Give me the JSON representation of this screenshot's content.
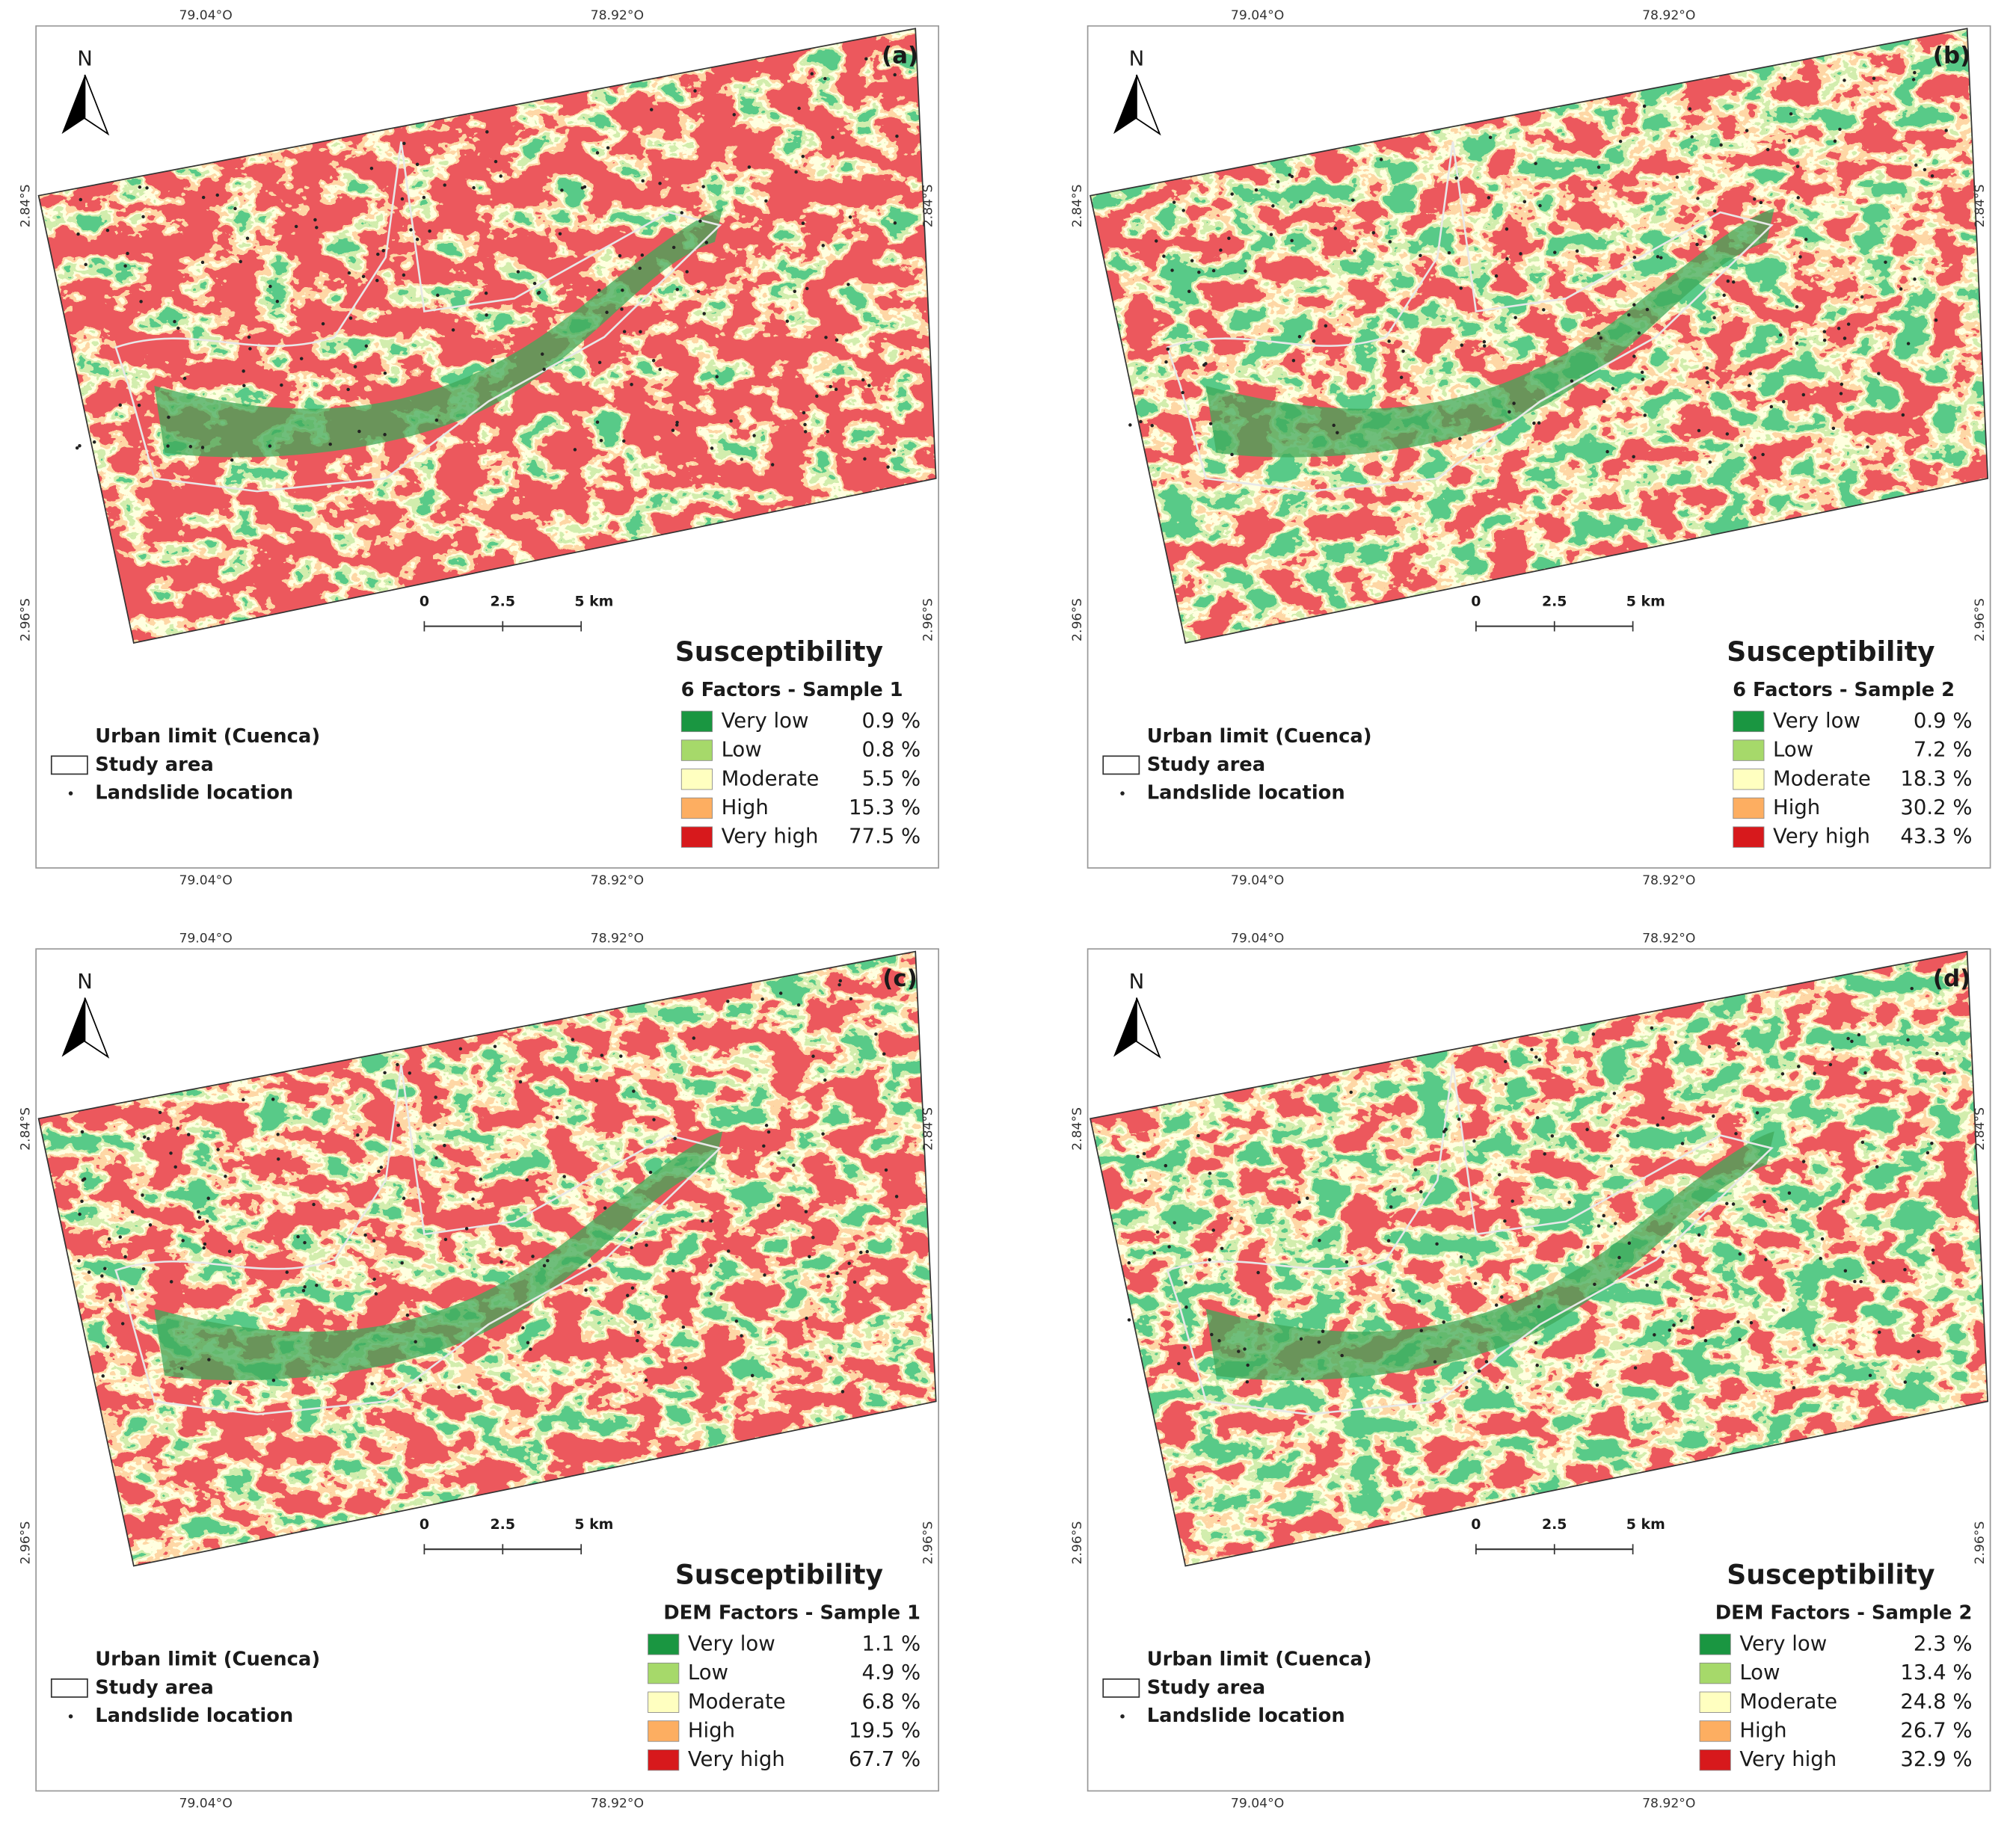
{
  "panels": [
    {
      "label": "(a)",
      "north": "N",
      "lon_labels": [
        "79.04°O",
        "78.92°O"
      ],
      "lat_labels": [
        "2.84°S",
        "2.96°S"
      ],
      "scale_labels": [
        "0",
        "2.5",
        "5 km"
      ],
      "legend": {
        "title": "Susceptibility",
        "subtitle": "6 Factors - Sample 1",
        "classes": [
          {
            "name": "Very low",
            "value": "0.9 %",
            "color": "#1a9641"
          },
          {
            "name": "Low",
            "value": "0.8 %",
            "color": "#a6d96a"
          },
          {
            "name": "Moderate",
            "value": "5.5 %",
            "color": "#ffffc0"
          },
          {
            "name": "High",
            "value": "15.3 %",
            "color": "#fdae61"
          },
          {
            "name": "Very high",
            "value": "77.5 %",
            "color": "#d7191c"
          }
        ]
      },
      "map_legend": [
        "Urban limit (Cuenca)",
        "Study area",
        "Landslide location"
      ]
    },
    {
      "label": "(b)",
      "north": "N",
      "lon_labels": [
        "79.04°O",
        "78.92°O"
      ],
      "lat_labels": [
        "2.84°S",
        "2.96°S"
      ],
      "scale_labels": [
        "0",
        "2.5",
        "5 km"
      ],
      "legend": {
        "title": "Susceptibility",
        "subtitle": "6 Factors - Sample 2",
        "classes": [
          {
            "name": "Very low",
            "value": "0.9 %",
            "color": "#1a9641"
          },
          {
            "name": "Low",
            "value": "7.2 %",
            "color": "#a6d96a"
          },
          {
            "name": "Moderate",
            "value": "18.3 %",
            "color": "#ffffc0"
          },
          {
            "name": "High",
            "value": "30.2 %",
            "color": "#fdae61"
          },
          {
            "name": "Very high",
            "value": "43.3 %",
            "color": "#d7191c"
          }
        ]
      },
      "map_legend": [
        "Urban limit (Cuenca)",
        "Study area",
        "Landslide location"
      ]
    },
    {
      "label": "(c)",
      "north": "N",
      "lon_labels": [
        "79.04°O",
        "78.92°O"
      ],
      "lat_labels": [
        "2.84°S",
        "2.96°S"
      ],
      "scale_labels": [
        "0",
        "2.5",
        "5 km"
      ],
      "legend": {
        "title": "Susceptibility",
        "subtitle": "DEM Factors - Sample 1",
        "classes": [
          {
            "name": "Very low",
            "value": "1.1 %",
            "color": "#1a9641"
          },
          {
            "name": "Low",
            "value": "4.9 %",
            "color": "#a6d96a"
          },
          {
            "name": "Moderate",
            "value": "6.8 %",
            "color": "#ffffc0"
          },
          {
            "name": "High",
            "value": "19.5 %",
            "color": "#fdae61"
          },
          {
            "name": "Very high",
            "value": "67.7 %",
            "color": "#d7191c"
          }
        ]
      },
      "map_legend": [
        "Urban limit (Cuenca)",
        "Study area",
        "Landslide location"
      ]
    },
    {
      "label": "(d)",
      "north": "N",
      "lon_labels": [
        "79.04°O",
        "78.92°O"
      ],
      "lat_labels": [
        "2.84°S",
        "2.96°S"
      ],
      "scale_labels": [
        "0",
        "2.5",
        "5 km"
      ],
      "legend": {
        "title": "Susceptibility",
        "subtitle": "DEM Factors - Sample 2",
        "classes": [
          {
            "name": "Very low",
            "value": "2.3 %",
            "color": "#1a9641"
          },
          {
            "name": "Low",
            "value": "13.4 %",
            "color": "#a6d96a"
          },
          {
            "name": "Moderate",
            "value": "24.8 %",
            "color": "#ffffc0"
          },
          {
            "name": "High",
            "value": "26.7 %",
            "color": "#fdae61"
          },
          {
            "name": "Very high",
            "value": "32.9 %",
            "color": "#d7191c"
          }
        ]
      },
      "map_legend": [
        "Urban limit (Cuenca)",
        "Study area",
        "Landslide location"
      ]
    }
  ]
}
